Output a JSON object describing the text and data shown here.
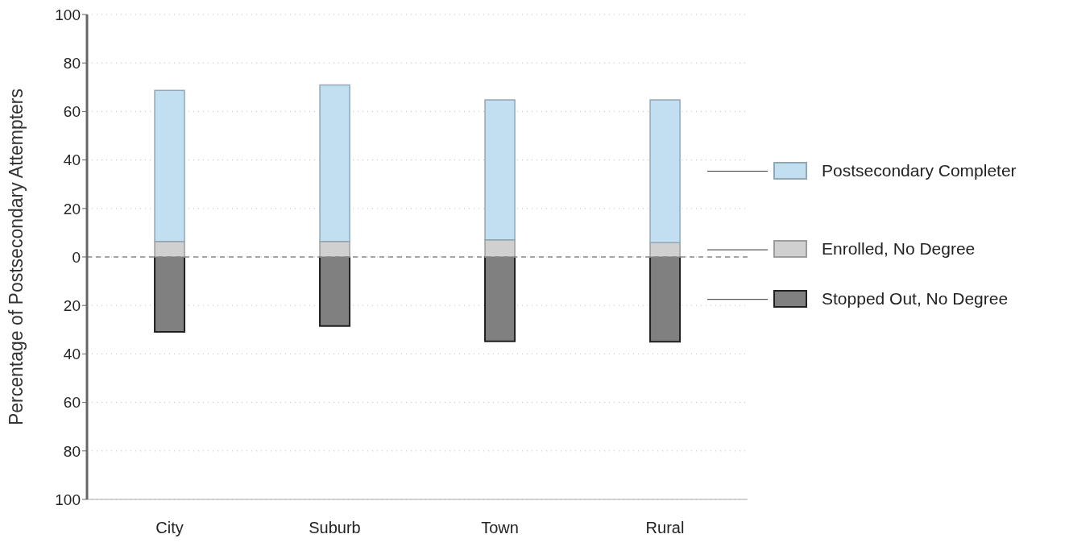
{
  "chart_data": {
    "type": "bar",
    "ylabel": "Percentage of Postsecondary Attempters",
    "categories": [
      "City",
      "Suburb",
      "Town",
      "Rural"
    ],
    "series": [
      {
        "name": "Stopped Out, No Degree",
        "color": "#808080",
        "values": [
          -30.9,
          -28.5,
          -34.8,
          -35.0
        ]
      },
      {
        "name": "Enrolled, No Degree",
        "color": "#d0d0d0",
        "values": [
          6.4,
          6.4,
          7.1,
          5.9
        ]
      },
      {
        "name": "Postsecondary Completer",
        "color": "#c2dff2",
        "values": [
          62.3,
          64.5,
          57.7,
          58.9
        ]
      }
    ],
    "stacked": true,
    "ylim": [
      -100,
      100
    ],
    "yticks": [
      100,
      80,
      60,
      40,
      20,
      0,
      {
        "value": -20,
        "label": "20"
      },
      {
        "value": -40,
        "label": "40"
      },
      {
        "value": -60,
        "label": "60"
      },
      {
        "value": -80,
        "label": "80"
      },
      {
        "value": -100,
        "label": "100"
      }
    ],
    "grid": "y",
    "ref_lines": [
      {
        "axis": "y",
        "value": 0,
        "label": null,
        "color": "#888888",
        "line_style": "dashed"
      }
    ],
    "legend": "right"
  }
}
